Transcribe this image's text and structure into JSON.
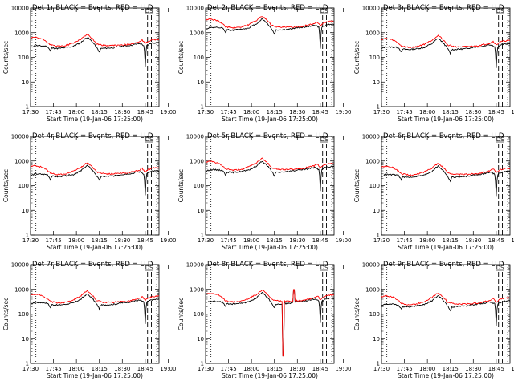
{
  "chart_data": {
    "type": "line",
    "layout": "3x3 grid",
    "y_scale": "log",
    "ylim": [
      1,
      10000
    ],
    "y_ticks": [
      1,
      10,
      100,
      1000,
      10000
    ],
    "y_tick_labels": [
      "1",
      "10",
      "100",
      "1000",
      "10000"
    ],
    "ylabel": "Counts/sec",
    "xlabel": "Start Time (19-Jan-06 17:25:00)",
    "x_ticks": [
      "17:30",
      "17:45",
      "18:00",
      "18:15",
      "18:30",
      "18:45",
      "19:00"
    ],
    "xlim_minutes": [
      17.0,
      101.0
    ],
    "series_colors": {
      "events": "#000000",
      "lld": "#ff0000"
    },
    "markers": {
      "dotted_lines_minutes": [
        8.5,
        87.5
      ],
      "dashed_lines_minutes": [
        91.5,
        94.0
      ],
      "box_label": "DS"
    },
    "panels": [
      {
        "id": "1r",
        "title": "Det 1r  BLACK = Events, RED = LLD",
        "base_scale": 1.0,
        "spike": null
      },
      {
        "id": "2r",
        "title": "Det 2r  BLACK = Events, RED = LLD",
        "base_scale": 5.5,
        "spike": null
      },
      {
        "id": "3r",
        "title": "Det 3r  BLACK = Events, RED = LLD",
        "base_scale": 0.9,
        "spike": null
      },
      {
        "id": "4r",
        "title": "Det 4r  BLACK = Events, RED = LLD",
        "base_scale": 1.0,
        "spike": null
      },
      {
        "id": "5r",
        "title": "Det 5r  BLACK = Events, RED = LLD",
        "base_scale": 1.5,
        "spike": null
      },
      {
        "id": "6r",
        "title": "Det 6r  BLACK = Events, RED = LLD",
        "base_scale": 0.95,
        "spike": null
      },
      {
        "id": "7r",
        "title": "Det 7r  BLACK = Events, RED = LLD",
        "base_scale": 1.0,
        "spike": null
      },
      {
        "id": "8r",
        "title": "Det 8r  BLACK = Events, RED = LLD",
        "base_scale": 1.1,
        "spike": "drop"
      },
      {
        "id": "9r",
        "title": "Det 9r  BLACK = Events, RED = LLD",
        "base_scale": 0.85,
        "spike": null
      }
    ],
    "events_profile": [
      [
        17,
        250
      ],
      [
        20,
        300
      ],
      [
        25,
        290
      ],
      [
        28,
        280
      ],
      [
        30,
        180
      ],
      [
        31,
        240
      ],
      [
        35,
        230
      ],
      [
        40,
        250
      ],
      [
        45,
        280
      ],
      [
        50,
        400
      ],
      [
        54,
        650
      ],
      [
        57,
        450
      ],
      [
        60,
        260
      ],
      [
        62,
        160
      ],
      [
        63,
        230
      ],
      [
        68,
        240
      ],
      [
        72,
        250
      ],
      [
        76,
        280
      ],
      [
        80,
        300
      ],
      [
        84,
        320
      ],
      [
        87,
        360
      ],
      [
        89,
        360
      ],
      [
        91,
        300
      ],
      [
        92,
        40
      ],
      [
        93,
        300
      ],
      [
        96,
        380
      ],
      [
        101,
        400
      ]
    ],
    "lld_profile": [
      [
        17,
        600
      ],
      [
        20,
        650
      ],
      [
        25,
        550
      ],
      [
        30,
        320
      ],
      [
        35,
        280
      ],
      [
        40,
        300
      ],
      [
        45,
        380
      ],
      [
        50,
        550
      ],
      [
        54,
        850
      ],
      [
        57,
        600
      ],
      [
        60,
        360
      ],
      [
        65,
        300
      ],
      [
        70,
        300
      ],
      [
        75,
        310
      ],
      [
        80,
        330
      ],
      [
        85,
        380
      ],
      [
        88,
        420
      ],
      [
        90,
        500
      ],
      [
        92,
        350
      ],
      [
        94,
        450
      ],
      [
        97,
        520
      ],
      [
        101,
        530
      ]
    ]
  }
}
